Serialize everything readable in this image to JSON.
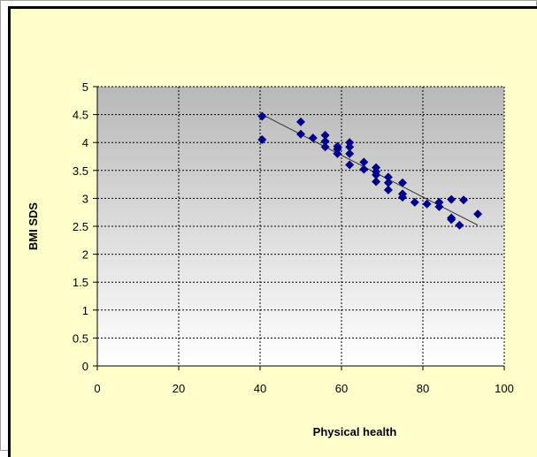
{
  "chart_data": {
    "type": "scatter",
    "xlabel": "Physical health",
    "ylabel": "BMI SDS",
    "xlim": [
      0,
      100
    ],
    "ylim": [
      0,
      5
    ],
    "x_ticks": [
      0,
      20,
      40,
      60,
      80,
      100
    ],
    "y_ticks": [
      0,
      0.5,
      1,
      1.5,
      2,
      2.5,
      3,
      3.5,
      4,
      4.5,
      5
    ],
    "x_tick_labels": [
      "0",
      "20",
      "40",
      "60",
      "80",
      "100"
    ],
    "y_tick_labels": [
      "0",
      "0.5",
      "1",
      "1.5",
      "2",
      "2.5",
      "3",
      "3.5",
      "4",
      "4.5",
      "5"
    ],
    "grid": true,
    "legend": "none",
    "background": "gradient gray to white",
    "marker": "diamond",
    "colors": {
      "marker": "#00008b",
      "trendline": "#333333",
      "chart_bg": "#ffffcc",
      "plot_top": "#b8b8b8",
      "plot_bottom": "#ffffff"
    },
    "series": [
      {
        "points": [
          [
            40.5,
            4.47
          ],
          [
            40.5,
            4.05
          ],
          [
            50,
            4.37
          ],
          [
            50,
            4.15
          ],
          [
            53,
            4.08
          ],
          [
            56,
            4.13
          ],
          [
            56,
            4.02
          ],
          [
            56,
            3.92
          ],
          [
            59,
            3.93
          ],
          [
            59,
            3.88
          ],
          [
            59,
            3.8
          ],
          [
            62,
            4.0
          ],
          [
            62,
            3.92
          ],
          [
            62,
            3.8
          ],
          [
            62,
            3.6
          ],
          [
            65.5,
            3.65
          ],
          [
            65.5,
            3.52
          ],
          [
            68.5,
            3.55
          ],
          [
            68.5,
            3.48
          ],
          [
            68.5,
            3.42
          ],
          [
            68.5,
            3.3
          ],
          [
            71.5,
            3.38
          ],
          [
            71.5,
            3.28
          ],
          [
            71.5,
            3.15
          ],
          [
            75,
            3.28
          ],
          [
            75,
            3.08
          ],
          [
            75,
            3.02
          ],
          [
            78,
            2.93
          ],
          [
            81,
            2.9
          ],
          [
            84,
            2.93
          ],
          [
            84,
            2.85
          ],
          [
            87,
            2.98
          ],
          [
            87,
            2.65
          ],
          [
            87,
            2.62
          ],
          [
            89,
            2.52
          ],
          [
            90,
            2.97
          ],
          [
            93.5,
            2.72
          ]
        ]
      }
    ],
    "trendline": {
      "x": [
        40.5,
        93.5
      ],
      "y": [
        4.5,
        2.52
      ]
    }
  }
}
